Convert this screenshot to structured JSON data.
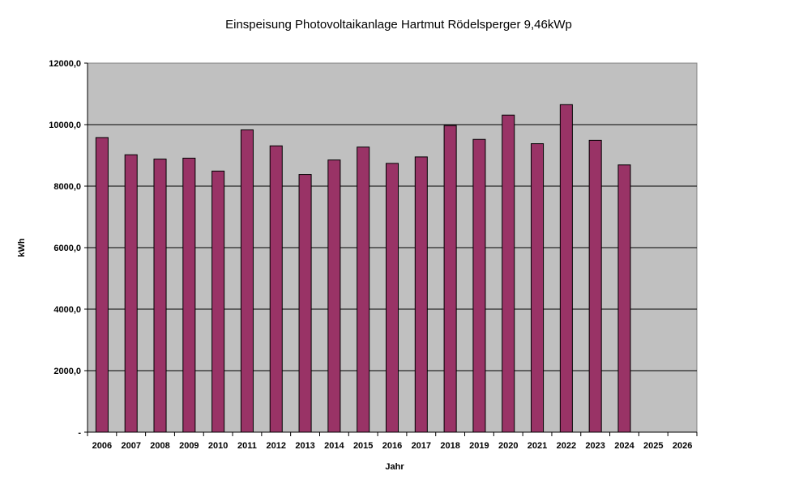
{
  "chart_data": {
    "type": "bar",
    "title": "Einspeisung Photovoltaikanlage Hartmut Rödelsperger 9,46kWp",
    "xlabel": "Jahr",
    "ylabel": "kWh",
    "ylim": [
      0,
      12000
    ],
    "yticks": [
      {
        "value": 0,
        "label": "-"
      },
      {
        "value": 2000,
        "label": "2000,0"
      },
      {
        "value": 4000,
        "label": "4000,0"
      },
      {
        "value": 6000,
        "label": "6000,0"
      },
      {
        "value": 8000,
        "label": "8000,0"
      },
      {
        "value": 10000,
        "label": "10000,0"
      },
      {
        "value": 12000,
        "label": "12000,0"
      }
    ],
    "categories": [
      "2006",
      "2007",
      "2008",
      "2009",
      "2010",
      "2011",
      "2012",
      "2013",
      "2014",
      "2015",
      "2016",
      "2017",
      "2018",
      "2019",
      "2020",
      "2021",
      "2022",
      "2023",
      "2024",
      "2025",
      "2026"
    ],
    "values": [
      9580,
      9020,
      8880,
      8910,
      8490,
      9830,
      9310,
      8380,
      8850,
      9270,
      8740,
      8950,
      9970,
      9520,
      10310,
      9380,
      10650,
      9490,
      8690,
      null,
      null
    ],
    "grid": true,
    "legend": "none",
    "colors": {
      "bar": "#993366",
      "bar_stroke": "#000000",
      "plot_background": "#c0c0c0",
      "gridline": "#000000"
    }
  }
}
